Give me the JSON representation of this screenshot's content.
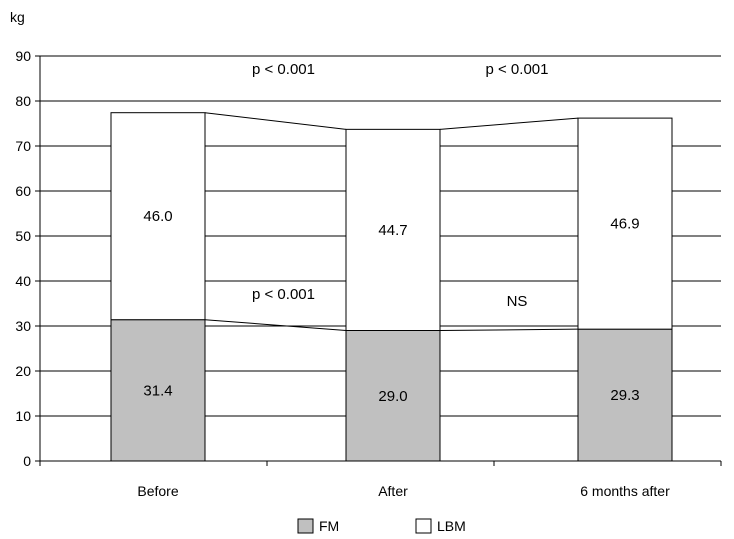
{
  "chart_data": {
    "type": "bar",
    "stacked": true,
    "ylabel": "kg",
    "ylim": [
      0,
      90
    ],
    "yticks": [
      "0",
      "10",
      "20",
      "30",
      "40",
      "50",
      "60",
      "70",
      "80",
      "90"
    ],
    "categories": [
      "Before",
      "After",
      "6 months after"
    ],
    "series": [
      {
        "name": "FM",
        "values": [
          31.4,
          29.0,
          29.3
        ],
        "labels": [
          "31.4",
          "29.0",
          "29.3"
        ],
        "color": "#c0c0c0"
      },
      {
        "name": "LBM",
        "values": [
          46.0,
          44.7,
          46.9
        ],
        "labels": [
          "46.0",
          "44.7",
          "46.9"
        ],
        "color": "#ffffff"
      }
    ],
    "grid": true,
    "legend": "bottom",
    "annotations": [
      {
        "text": "p < 0.001",
        "between": [
          "Before",
          "After"
        ],
        "series": "LBM",
        "y": 86
      },
      {
        "text": "p < 0.001",
        "between": [
          "After",
          "6 months after"
        ],
        "series": "LBM",
        "y": 86
      },
      {
        "text": "p < 0.001",
        "between": [
          "Before",
          "After"
        ],
        "series": "FM",
        "y": 36
      },
      {
        "text": "NS",
        "between": [
          "After",
          "6 months after"
        ],
        "series": "FM",
        "y": 34.5
      }
    ]
  }
}
